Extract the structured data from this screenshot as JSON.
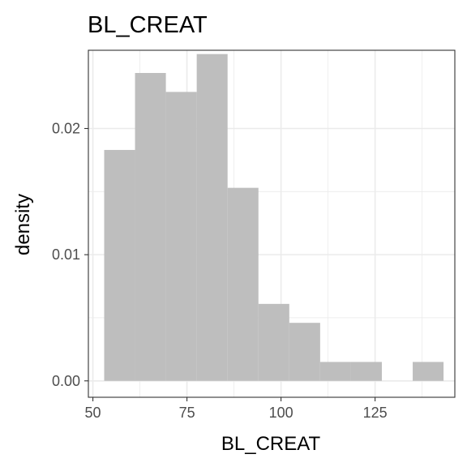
{
  "chart_data": {
    "type": "bar",
    "title": "BL_CREAT",
    "xlabel": "BL_CREAT",
    "ylabel": "density",
    "xlim": [
      48.8,
      146.2
    ],
    "ylim": [
      -0.0013,
      0.0262
    ],
    "xticks": [
      50,
      75,
      100,
      125
    ],
    "xtick_labels": [
      "50",
      "75",
      "100",
      "125"
    ],
    "yticks": [
      0.0,
      0.01,
      0.02
    ],
    "ytick_labels": [
      "0.00",
      "0.01",
      "0.02"
    ],
    "bin_edges": [
      53.0,
      61.2,
      69.4,
      77.6,
      85.8,
      94.0,
      102.2,
      110.4,
      118.6,
      126.8,
      135.0,
      143.2
    ],
    "values": [
      0.0183,
      0.0244,
      0.0229,
      0.0259,
      0.0153,
      0.0061,
      0.0046,
      0.0015,
      0.0015,
      0.0,
      0.0015
    ],
    "bar_color": "#bebebe",
    "grid": true,
    "theme": "bw"
  }
}
